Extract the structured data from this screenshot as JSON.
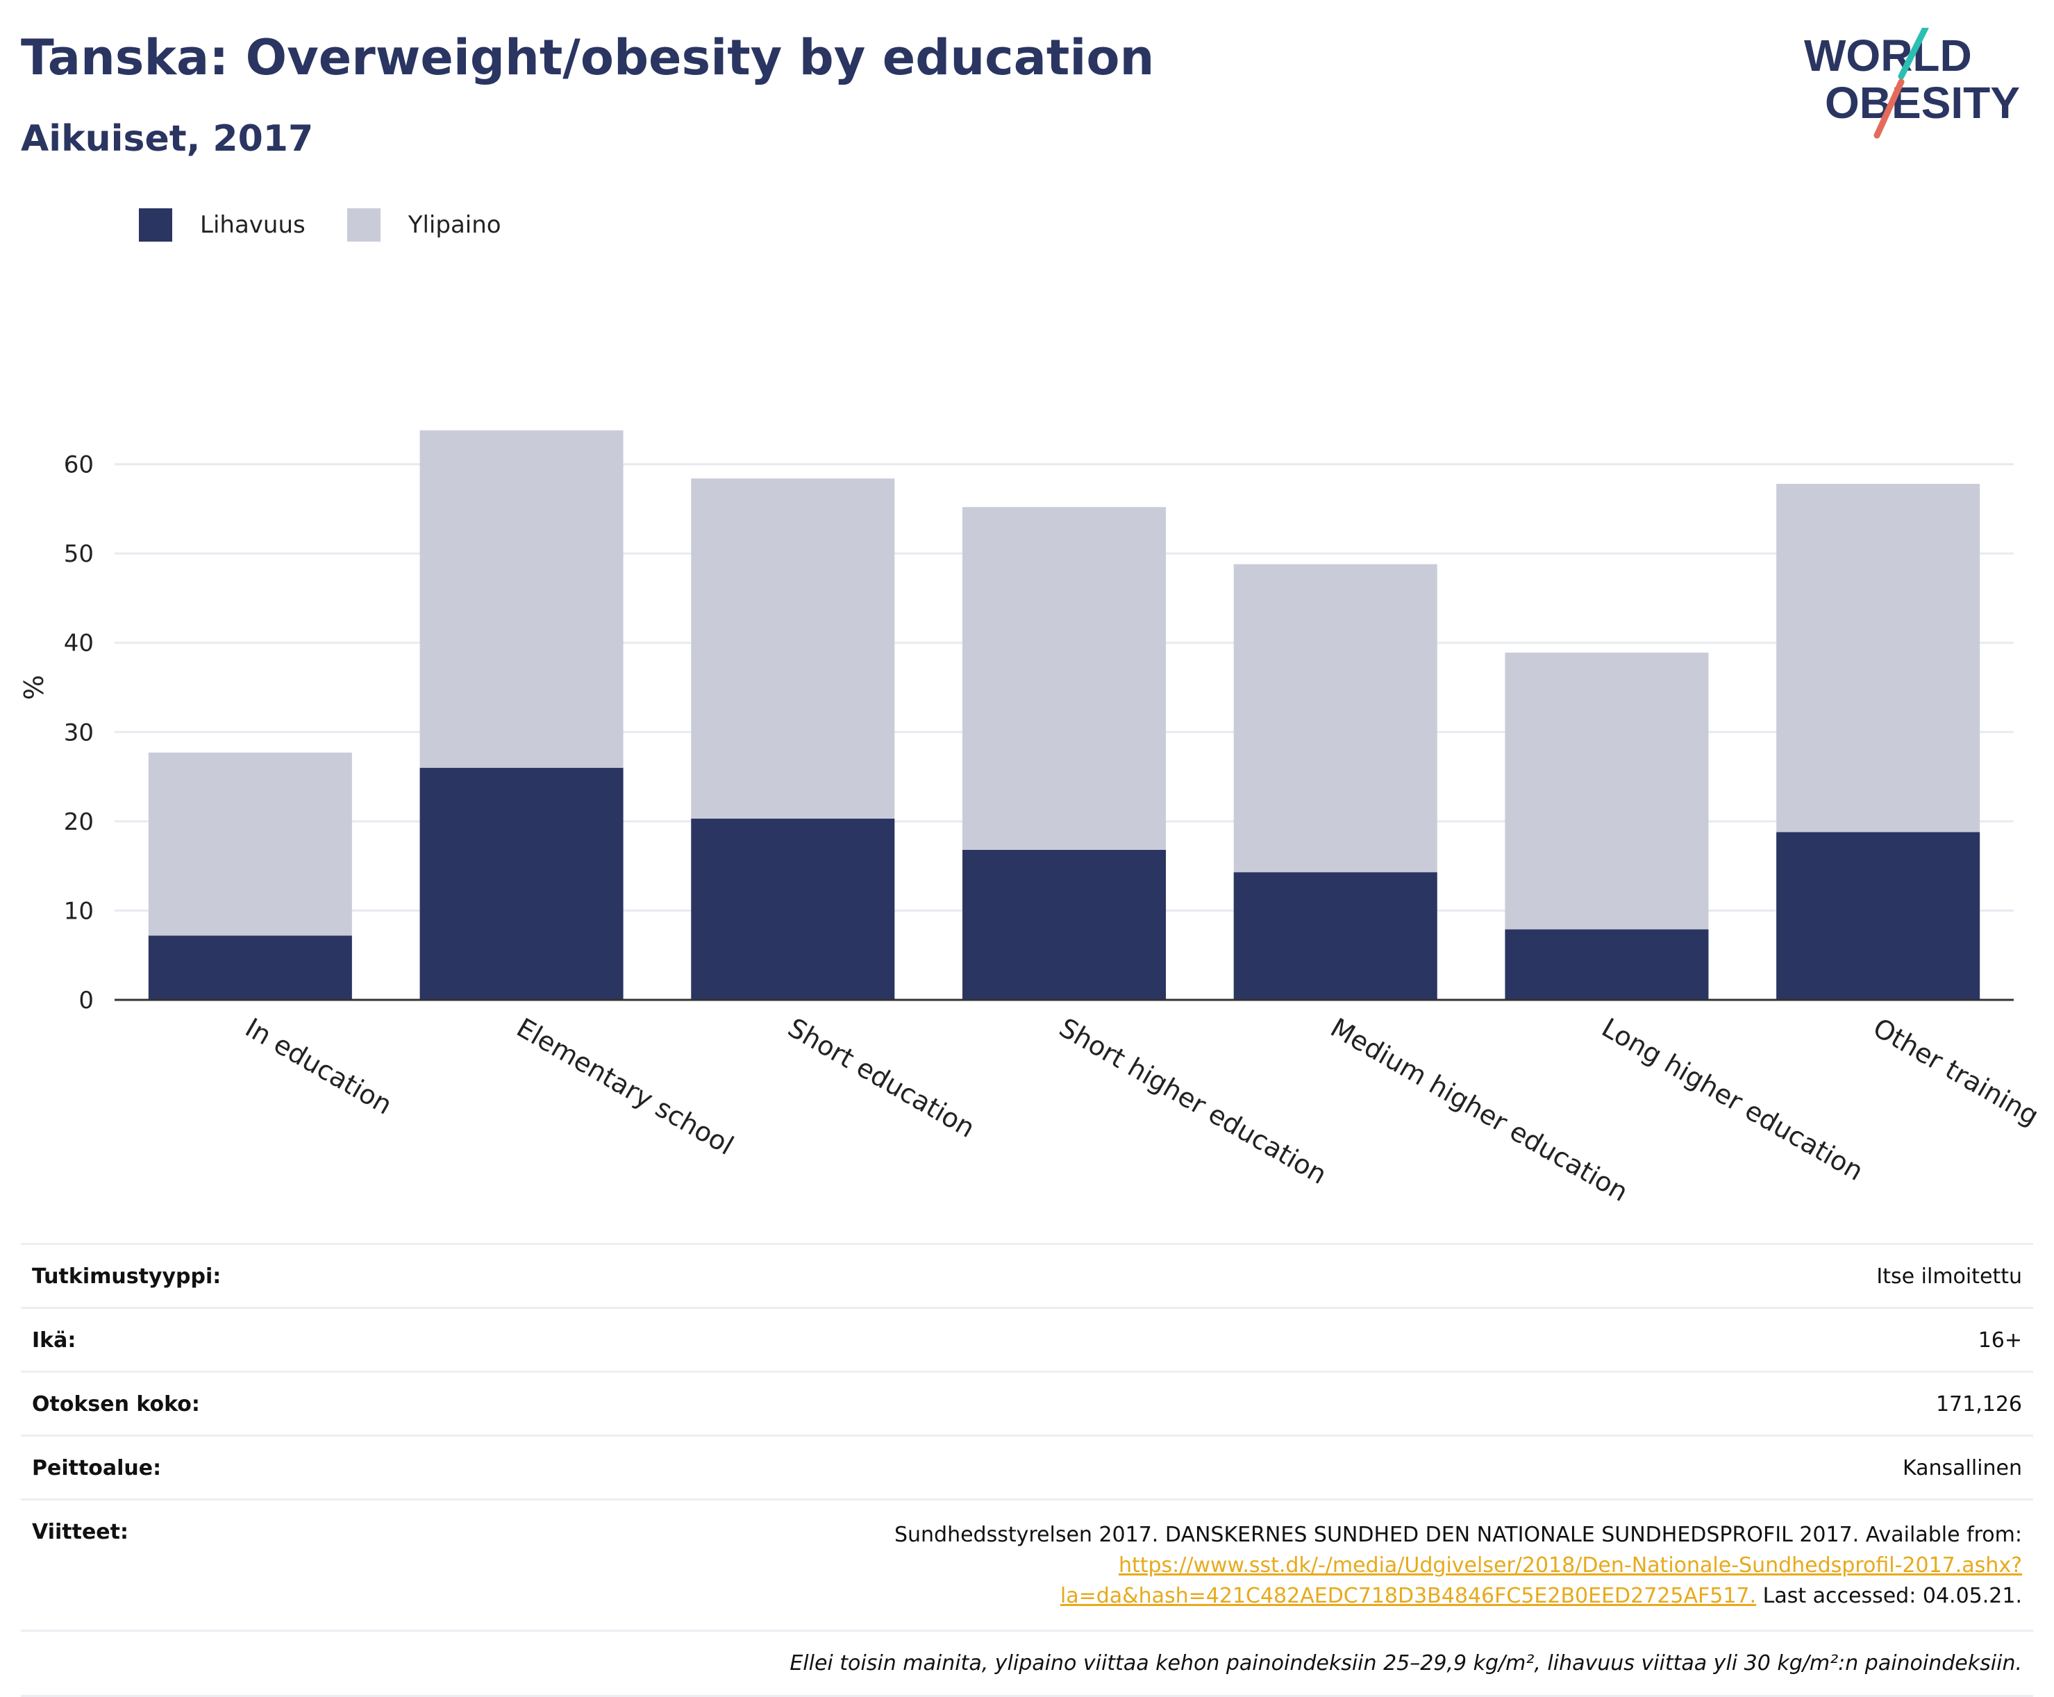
{
  "title": "Tanska: Overweight/obesity by education",
  "subtitle": "Aikuiset, 2017",
  "logo": {
    "line1": "WORLD",
    "line2": "OBESITY"
  },
  "legend": [
    {
      "label": "Lihavuus",
      "color": "#2a3561"
    },
    {
      "label": "Ylipaino",
      "color": "#c9ccd8"
    }
  ],
  "chart_data": {
    "type": "bar",
    "stacked": true,
    "categories": [
      "In education",
      "Elementary school",
      "Short education",
      "Short higher education",
      "Medium higher education",
      "Long higher education",
      "Other training"
    ],
    "series": [
      {
        "name": "Lihavuus",
        "values": [
          7.2,
          26.0,
          20.3,
          16.8,
          14.3,
          7.9,
          18.8
        ],
        "color": "#2a3561"
      },
      {
        "name": "Ylipaino",
        "values": [
          20.5,
          37.8,
          38.1,
          38.4,
          34.5,
          31.0,
          39.0
        ],
        "color": "#c9ccd8"
      }
    ],
    "ylabel": "%",
    "ylim": [
      0,
      70
    ],
    "yticks": [
      0,
      10,
      20,
      30,
      40,
      50,
      60
    ],
    "grid": true
  },
  "meta": {
    "rows": [
      {
        "label": "Tutkimustyyppi:",
        "value": "Itse ilmoitettu"
      },
      {
        "label": "Ikä:",
        "value": "16+"
      },
      {
        "label": "Otoksen koko:",
        "value": "171,126"
      },
      {
        "label": "Peittoalue:",
        "value": "Kansallinen"
      }
    ],
    "ref_label": "Viitteet:",
    "ref_text": "Sundhedsstyrelsen 2017. DANSKERNES SUNDHED DEN NATIONALE SUNDHEDSPROFIL 2017. Available from: ",
    "ref_link": "https://www.sst.dk/-/media/Udgivelser/2018/Den-Nationale-Sundhedsprofil-2017.ashx?la=da&hash=421C482AEDC718D3B4846FC5E2B0EED2725AF517.",
    "ref_after": " Last accessed: 04.05.21.",
    "note": "Ellei toisin mainita, ylipaino viittaa kehon painoindeksiin 25–29,9 kg/m², lihavuus viittaa yli 30 kg/m²:n painoindeksiin."
  }
}
